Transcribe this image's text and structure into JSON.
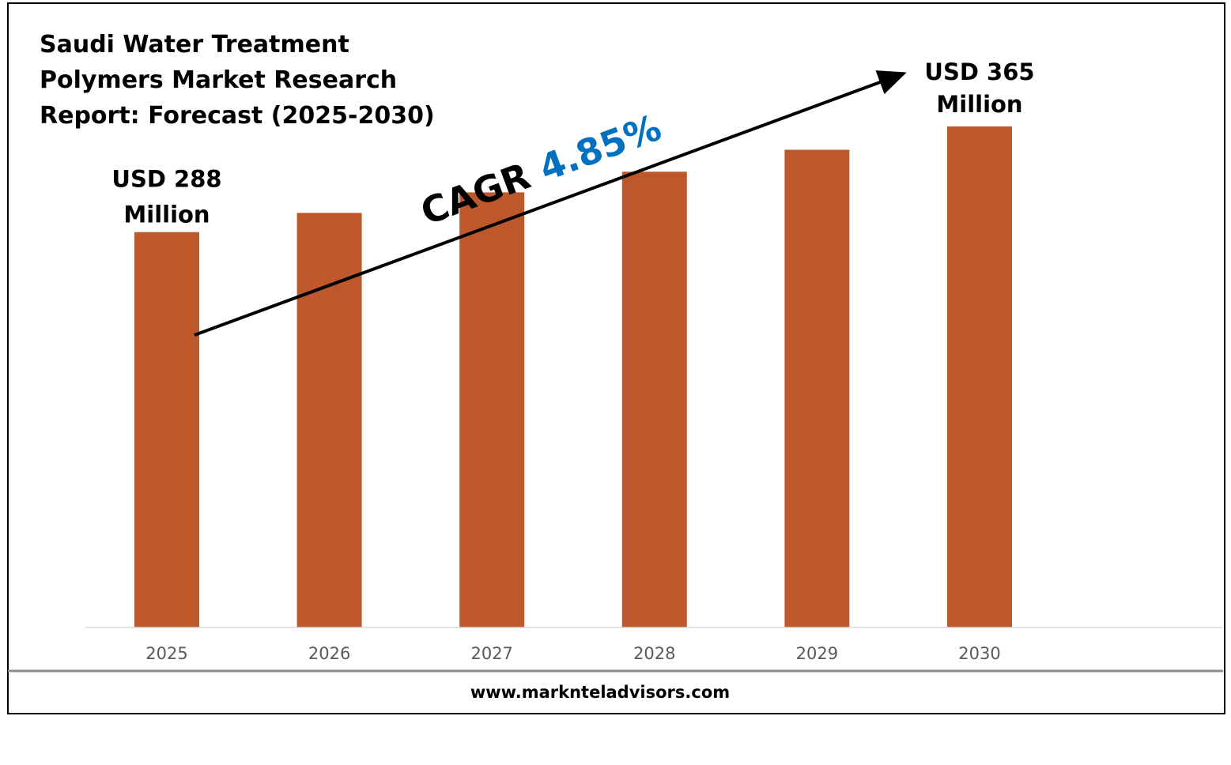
{
  "chart_data": {
    "type": "bar",
    "title_lines": [
      "Saudi Water Treatment",
      "Polymers Market Research",
      "Report: Forecast (2025-2030)"
    ],
    "categories": [
      "2025",
      "2026",
      "2027",
      "2028",
      "2029",
      "2030"
    ],
    "values": [
      288,
      302,
      317,
      332,
      348,
      365
    ],
    "unit": "USD Million",
    "xlabel": "",
    "ylabel": "",
    "ylim": [
      0,
      365
    ],
    "grid": false,
    "legend": "none",
    "annotations": {
      "start_label": [
        "USD 288",
        "Million"
      ],
      "end_label": [
        "USD 365",
        "Million"
      ],
      "cagr_label": "CAGR",
      "cagr_value": "4.85%"
    }
  },
  "footer": {
    "url": "www.marknteladvisors.com"
  },
  "colors": {
    "bar": "#BD582C",
    "cagr_value": "#0070C0",
    "tick_text": "#595959",
    "axis": "#D9D9D9"
  }
}
